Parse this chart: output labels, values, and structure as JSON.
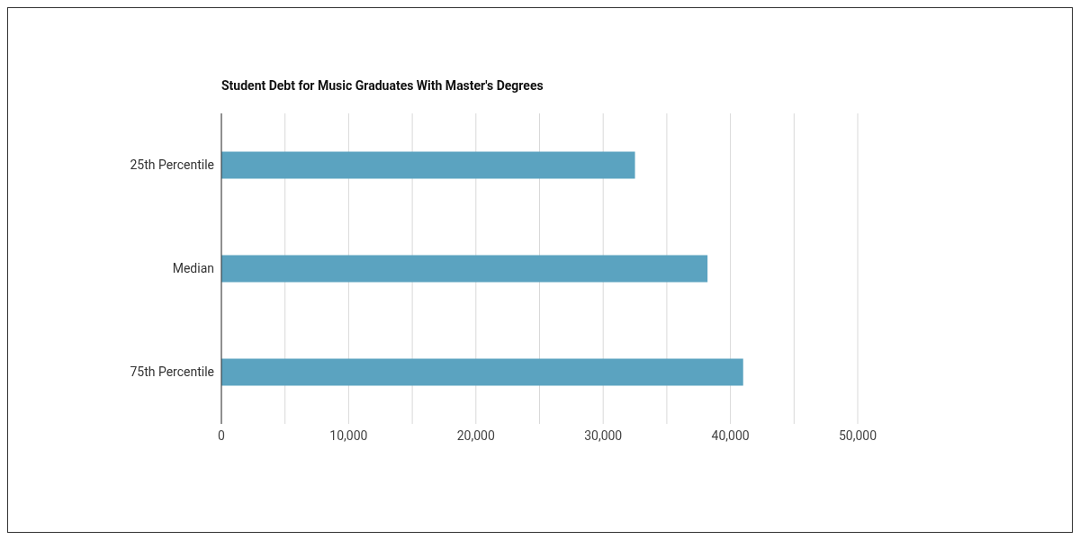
{
  "chart_data": {
    "type": "bar",
    "orientation": "horizontal",
    "title": "Student Debt for Music Graduates With Master's Degrees",
    "categories": [
      "25th Percentile",
      "Median",
      "75th Percentile"
    ],
    "values": [
      32500,
      38200,
      41000
    ],
    "color": "#5ba3c0",
    "xlim": [
      0,
      50000
    ],
    "xticks": [
      0,
      {
        "value": 5000,
        "label": null
      },
      {
        "value": 10000,
        "label": "10,000"
      },
      {
        "value": 15000,
        "label": null
      },
      {
        "value": 20000,
        "label": "20,000"
      },
      {
        "value": 25000,
        "label": null
      },
      {
        "value": 30000,
        "label": "30,000"
      },
      {
        "value": 35000,
        "label": null
      },
      {
        "value": 40000,
        "label": "40,000"
      },
      {
        "value": 45000,
        "label": null
      },
      {
        "value": 50000,
        "label": "50,000"
      }
    ],
    "grid": "x"
  }
}
